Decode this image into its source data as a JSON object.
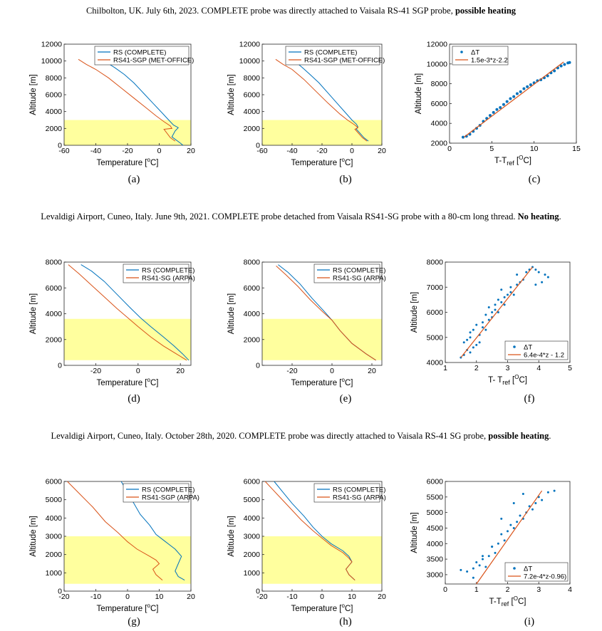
{
  "rows": [
    {
      "title_prefix": "Chilbolton, UK. July 6th, 2023. COMPLETE probe was directly attached to Vaisala RS-41 SGP probe, ",
      "title_bold": "possible heating",
      "title_suffix": ""
    },
    {
      "title_prefix": "Levaldigi Airport, Cuneo, Italy. June 9th, 2021. COMPLETE probe detached from Vaisala RS41-SG probe with a 80-cm long thread. ",
      "title_bold": "No heating",
      "title_suffix": "."
    },
    {
      "title_prefix": "Levaldigi Airport, Cuneo, Italy. October 28th, 2020. COMPLETE probe was directly attached to Vaisala RS-41 SG probe, ",
      "title_bold": "possible heating",
      "title_suffix": "."
    }
  ],
  "colors": {
    "blue": "#0072BD",
    "orange": "#D95319",
    "shade": "#FFFF9E"
  },
  "chart_data": [
    {
      "id": "a",
      "caption": "(a)",
      "type": "line",
      "xlabel": "Temperature [",
      "xlabel_unit": "o",
      "xlabel_end": "C]",
      "ylabel": "Altitude [m]",
      "xlim": [
        -60,
        20
      ],
      "ylim": [
        0,
        12000
      ],
      "xticks": [
        -60,
        -40,
        -20,
        0,
        20
      ],
      "yticks": [
        0,
        2000,
        4000,
        6000,
        8000,
        10000,
        12000
      ],
      "shade": [
        0,
        3000
      ],
      "legend": "top-right",
      "series": [
        {
          "name": "RS (COMPLETE)",
          "color": "blue",
          "x": [
            15,
            13,
            8,
            10,
            12,
            9,
            6,
            2,
            -4,
            -10,
            -16,
            -22,
            -28,
            -33,
            -37
          ],
          "y": [
            0,
            300,
            1000,
            1700,
            2100,
            2400,
            3000,
            3800,
            5000,
            6200,
            7400,
            8400,
            9200,
            9800,
            10200
          ]
        },
        {
          "name": "RS41-SGP (MET-OFFICE)",
          "color": "orange",
          "x": [
            10,
            7,
            3,
            8,
            7,
            3,
            -2,
            -8,
            -16,
            -24,
            -32,
            -40,
            -46,
            -51
          ],
          "y": [
            500,
            900,
            1900,
            2000,
            2300,
            2800,
            3500,
            4400,
            5600,
            6800,
            8000,
            9000,
            9600,
            10200
          ]
        }
      ]
    },
    {
      "id": "b",
      "caption": "(b)",
      "type": "line",
      "xlabel": "Temperature [",
      "xlabel_unit": "o",
      "xlabel_end": "C]",
      "ylabel": "Altitude [m]",
      "xlim": [
        -60,
        20
      ],
      "ylim": [
        0,
        12000
      ],
      "xticks": [
        -60,
        -40,
        -20,
        0,
        20
      ],
      "yticks": [
        0,
        2000,
        4000,
        6000,
        8000,
        10000,
        12000
      ],
      "shade": [
        0,
        3000
      ],
      "legend": "top-right",
      "series": [
        {
          "name": "RS (COMPLETE)",
          "color": "blue",
          "x": [
            11,
            8,
            3,
            4,
            3,
            0,
            -4,
            -10,
            -16,
            -22,
            -28,
            -33,
            -37
          ],
          "y": [
            500,
            900,
            1900,
            2200,
            2500,
            3000,
            3800,
            5000,
            6200,
            7400,
            8400,
            9200,
            9800
          ]
        },
        {
          "name": "RS41-SGP (MET-OFFICE)",
          "color": "orange",
          "x": [
            10,
            7,
            2,
            4,
            2,
            -3,
            -8,
            -16,
            -24,
            -32,
            -40,
            -46,
            -51
          ],
          "y": [
            500,
            900,
            1900,
            2100,
            2400,
            3000,
            3700,
            5000,
            6400,
            7800,
            9000,
            9600,
            10200
          ]
        }
      ]
    },
    {
      "id": "c",
      "caption": "(c)",
      "type": "scatter",
      "xlabel": "T-T",
      "xlabel_sub": "ref",
      "xlabel_unit": "O",
      "xlabel_end": "C]",
      "xlabel_mid": " [",
      "ylabel": "Altitude [m]",
      "xlim": [
        0,
        15
      ],
      "ylim": [
        2000,
        12000
      ],
      "xticks": [
        0,
        5,
        10,
        15
      ],
      "yticks": [
        2000,
        4000,
        6000,
        8000,
        10000,
        12000
      ],
      "legend": "top-left",
      "series": [
        {
          "name": "ΔT",
          "color": "blue",
          "x": [
            1.6,
            2,
            2.4,
            2.8,
            3.2,
            3.6,
            4,
            4.4,
            4.8,
            5.2,
            5.6,
            6,
            6.4,
            6.8,
            7.2,
            7.6,
            8,
            8.4,
            8.8,
            9.2,
            9.6,
            10,
            10.4,
            10.8,
            11.2,
            11.6,
            12,
            12.4,
            12.8,
            13.2,
            13.6,
            14,
            14.2
          ],
          "y": [
            2600,
            2700,
            2900,
            3200,
            3500,
            3800,
            4200,
            4500,
            4800,
            5100,
            5400,
            5600,
            5900,
            6200,
            6500,
            6700,
            7000,
            7200,
            7500,
            7700,
            7900,
            8100,
            8300,
            8400,
            8600,
            8800,
            9100,
            9300,
            9600,
            9800,
            9950,
            10100,
            10150
          ]
        },
        {
          "name": "1.5e-3*z-2.2",
          "color": "orange",
          "line": [
            [
              1.7,
              2600
            ],
            [
              13.5,
              10200
            ]
          ]
        }
      ]
    },
    {
      "id": "d",
      "caption": "(d)",
      "type": "line",
      "xlabel": "Temperature [",
      "xlabel_unit": "o",
      "xlabel_end": "C]",
      "ylabel": "Altitude [m]",
      "xlim": [
        -35,
        25
      ],
      "ylim": [
        0,
        8000
      ],
      "xticks": [
        -20,
        0,
        20
      ],
      "yticks": [
        0,
        2000,
        4000,
        6000,
        8000
      ],
      "shade": [
        400,
        3600
      ],
      "legend": "top-right",
      "series": [
        {
          "name": "RS (COMPLETE)",
          "color": "blue",
          "x": [
            24,
            21,
            17,
            12,
            6,
            1,
            -4,
            -10,
            -16,
            -22,
            -27
          ],
          "y": [
            400,
            900,
            1500,
            2200,
            3000,
            3700,
            4500,
            5500,
            6500,
            7300,
            7800
          ]
        },
        {
          "name": "RS41-SG (ARPA)",
          "color": "orange",
          "x": [
            23,
            18,
            12,
            6,
            0,
            -5,
            -10,
            -16,
            -22,
            -28,
            -33
          ],
          "y": [
            400,
            900,
            1500,
            2200,
            3000,
            3700,
            4400,
            5300,
            6200,
            7100,
            7800
          ]
        }
      ]
    },
    {
      "id": "e",
      "caption": "(e)",
      "type": "line",
      "xlabel": "Temperature [",
      "xlabel_unit": "o",
      "xlabel_end": "C]",
      "ylabel": "Altitude [m]",
      "xlim": [
        -35,
        25
      ],
      "ylim": [
        0,
        8000
      ],
      "xticks": [
        -20,
        0,
        20
      ],
      "yticks": [
        0,
        2000,
        4000,
        6000,
        8000
      ],
      "shade": [
        400,
        3600
      ],
      "legend": "top-right",
      "series": [
        {
          "name": "RS (COMPLETE)",
          "color": "blue",
          "x": [
            22,
            17,
            10,
            4,
            0,
            -4,
            -10,
            -16,
            -22,
            -27
          ],
          "y": [
            400,
            900,
            1700,
            2700,
            3500,
            4200,
            5200,
            6300,
            7200,
            7800
          ]
        },
        {
          "name": "RS41-SG (ARPA)",
          "color": "orange",
          "x": [
            22,
            17,
            10,
            4,
            0,
            -5,
            -11,
            -17,
            -23,
            -28
          ],
          "y": [
            400,
            900,
            1700,
            2700,
            3500,
            4200,
            5100,
            6100,
            7000,
            7700
          ]
        }
      ]
    },
    {
      "id": "f",
      "caption": "(f)",
      "type": "scatter",
      "xlabel": "T- T",
      "xlabel_sub": "ref",
      "xlabel_unit": "O",
      "xlabel_end": "C]",
      "xlabel_mid": " [",
      "ylabel": "Altitude [m]",
      "xlim": [
        1,
        5
      ],
      "ylim": [
        4000,
        8000
      ],
      "xticks": [
        1,
        2,
        3,
        4,
        5
      ],
      "yticks": [
        4000,
        5000,
        6000,
        7000,
        8000
      ],
      "legend": "bottom-right",
      "series": [
        {
          "name": "ΔT",
          "color": "blue",
          "x": [
            1.5,
            1.6,
            1.7,
            1.8,
            1.9,
            1.6,
            1.7,
            1.8,
            2.0,
            2.1,
            1.8,
            1.9,
            2.1,
            2.2,
            2.3,
            2.0,
            2.2,
            2.4,
            2.5,
            2.3,
            2.5,
            2.6,
            2.7,
            2.4,
            2.6,
            2.8,
            2.9,
            2.7,
            2.9,
            3.0,
            3.1,
            3.2,
            2.8,
            3.1,
            3.3,
            3.4,
            3.5,
            3.3,
            3.6,
            3.7,
            3.8,
            3.9,
            4.0,
            4.2,
            4.3,
            4.1,
            3.9
          ],
          "y": [
            4200,
            4300,
            4500,
            4400,
            4600,
            4800,
            4900,
            5000,
            4700,
            4800,
            5200,
            5300,
            5100,
            5400,
            5300,
            5500,
            5600,
            5700,
            5800,
            5900,
            6000,
            6100,
            6000,
            6200,
            6300,
            6400,
            6300,
            6500,
            6600,
            6700,
            6800,
            6700,
            6900,
            7000,
            7100,
            7200,
            7300,
            7500,
            7600,
            7700,
            7800,
            7700,
            7600,
            7500,
            7400,
            7200,
            7100
          ]
        },
        {
          "name": "6.4e-4*z - 1.2",
          "color": "orange",
          "line": [
            [
              1.5,
              4200
            ],
            [
              3.8,
              7800
            ]
          ]
        }
      ]
    },
    {
      "id": "g",
      "caption": "(g)",
      "type": "line",
      "xlabel": "Temperature [",
      "xlabel_unit": "o",
      "xlabel_end": "C]",
      "ylabel": "Altitude [m]",
      "xlim": [
        -20,
        20
      ],
      "ylim": [
        0,
        6000
      ],
      "xticks": [
        -20,
        -10,
        0,
        10,
        20
      ],
      "yticks": [
        0,
        1000,
        2000,
        3000,
        4000,
        5000,
        6000
      ],
      "shade": [
        400,
        3000
      ],
      "legend": "top-right",
      "series": [
        {
          "name": "RS (COMPLETE)",
          "color": "blue",
          "x": [
            18,
            16,
            15,
            16,
            17,
            15,
            12,
            9,
            7,
            4,
            2,
            0,
            -2
          ],
          "y": [
            600,
            800,
            1100,
            1500,
            1900,
            2300,
            2700,
            3100,
            3600,
            4200,
            4800,
            5400,
            6000
          ]
        },
        {
          "name": "RS41-SGP (ARPA)",
          "color": "orange",
          "x": [
            11,
            9,
            8,
            10,
            9,
            7,
            3,
            0,
            -3,
            -7,
            -11,
            -15,
            -19
          ],
          "y": [
            600,
            900,
            1200,
            1500,
            1700,
            1900,
            2300,
            2700,
            3200,
            3800,
            4600,
            5300,
            6000
          ]
        }
      ]
    },
    {
      "id": "h",
      "caption": "(h)",
      "type": "line",
      "xlabel": "Temperature [",
      "xlabel_unit": "o",
      "xlabel_end": "C]",
      "ylabel": "Altitude [m]",
      "xlim": [
        -20,
        20
      ],
      "ylim": [
        0,
        6000
      ],
      "xticks": [
        -20,
        -10,
        0,
        10,
        20
      ],
      "yticks": [
        0,
        1000,
        2000,
        3000,
        4000,
        5000,
        6000
      ],
      "shade": [
        400,
        3000
      ],
      "legend": "top-right",
      "series": [
        {
          "name": "RS (COMPLETE)",
          "color": "blue",
          "x": [
            11,
            9,
            8,
            10,
            9,
            7,
            3,
            0,
            -3,
            -6,
            -10,
            -13,
            -16
          ],
          "y": [
            600,
            900,
            1200,
            1600,
            1900,
            2200,
            2600,
            3000,
            3500,
            4100,
            4800,
            5400,
            6000
          ]
        },
        {
          "name": "RS41-SG (ARPA)",
          "color": "orange",
          "x": [
            11,
            9,
            8,
            10,
            9,
            7,
            3,
            0,
            -3,
            -7,
            -11,
            -15,
            -19
          ],
          "y": [
            600,
            900,
            1200,
            1600,
            1800,
            2100,
            2500,
            2900,
            3300,
            3900,
            4600,
            5300,
            6000
          ]
        }
      ]
    },
    {
      "id": "i",
      "caption": "(i)",
      "type": "scatter",
      "xlabel": "T-T",
      "xlabel_sub": "ref",
      "xlabel_unit": "O",
      "xlabel_end": "C]",
      "xlabel_mid": " [",
      "ylabel": "Altitude [m]",
      "xlim": [
        0,
        4
      ],
      "ylim": [
        2700,
        6000
      ],
      "xticks": [
        0,
        1,
        2,
        3,
        4
      ],
      "yticks": [
        3000,
        3500,
        4000,
        4500,
        5000,
        5500,
        6000
      ],
      "legend": "bottom-right",
      "series": [
        {
          "name": "ΔT",
          "color": "blue",
          "x": [
            0.5,
            0.7,
            0.9,
            1.1,
            1.3,
            1.0,
            1.2,
            1.4,
            1.6,
            1.5,
            1.7,
            1.9,
            1.8,
            2.0,
            2.2,
            2.1,
            2.3,
            2.5,
            2.4,
            2.6,
            2.8,
            2.7,
            2.9,
            3.1,
            3.0,
            3.3,
            3.5,
            2.5,
            2.2,
            1.8,
            1.5,
            1.2,
            0.9
          ],
          "y": [
            3150,
            3100,
            3200,
            3300,
            3250,
            3400,
            3500,
            3600,
            3700,
            3900,
            4000,
            4100,
            4300,
            4400,
            4500,
            4600,
            4700,
            4800,
            4900,
            5000,
            5100,
            5200,
            5300,
            5400,
            5500,
            5650,
            5700,
            5600,
            5300,
            4800,
            3900,
            3600,
            2900
          ]
        },
        {
          "name": "7.2e-4*z-0.96)",
          "color": "orange",
          "line": [
            [
              1.0,
              2700
            ],
            [
              3.1,
              5700
            ]
          ]
        }
      ]
    }
  ]
}
